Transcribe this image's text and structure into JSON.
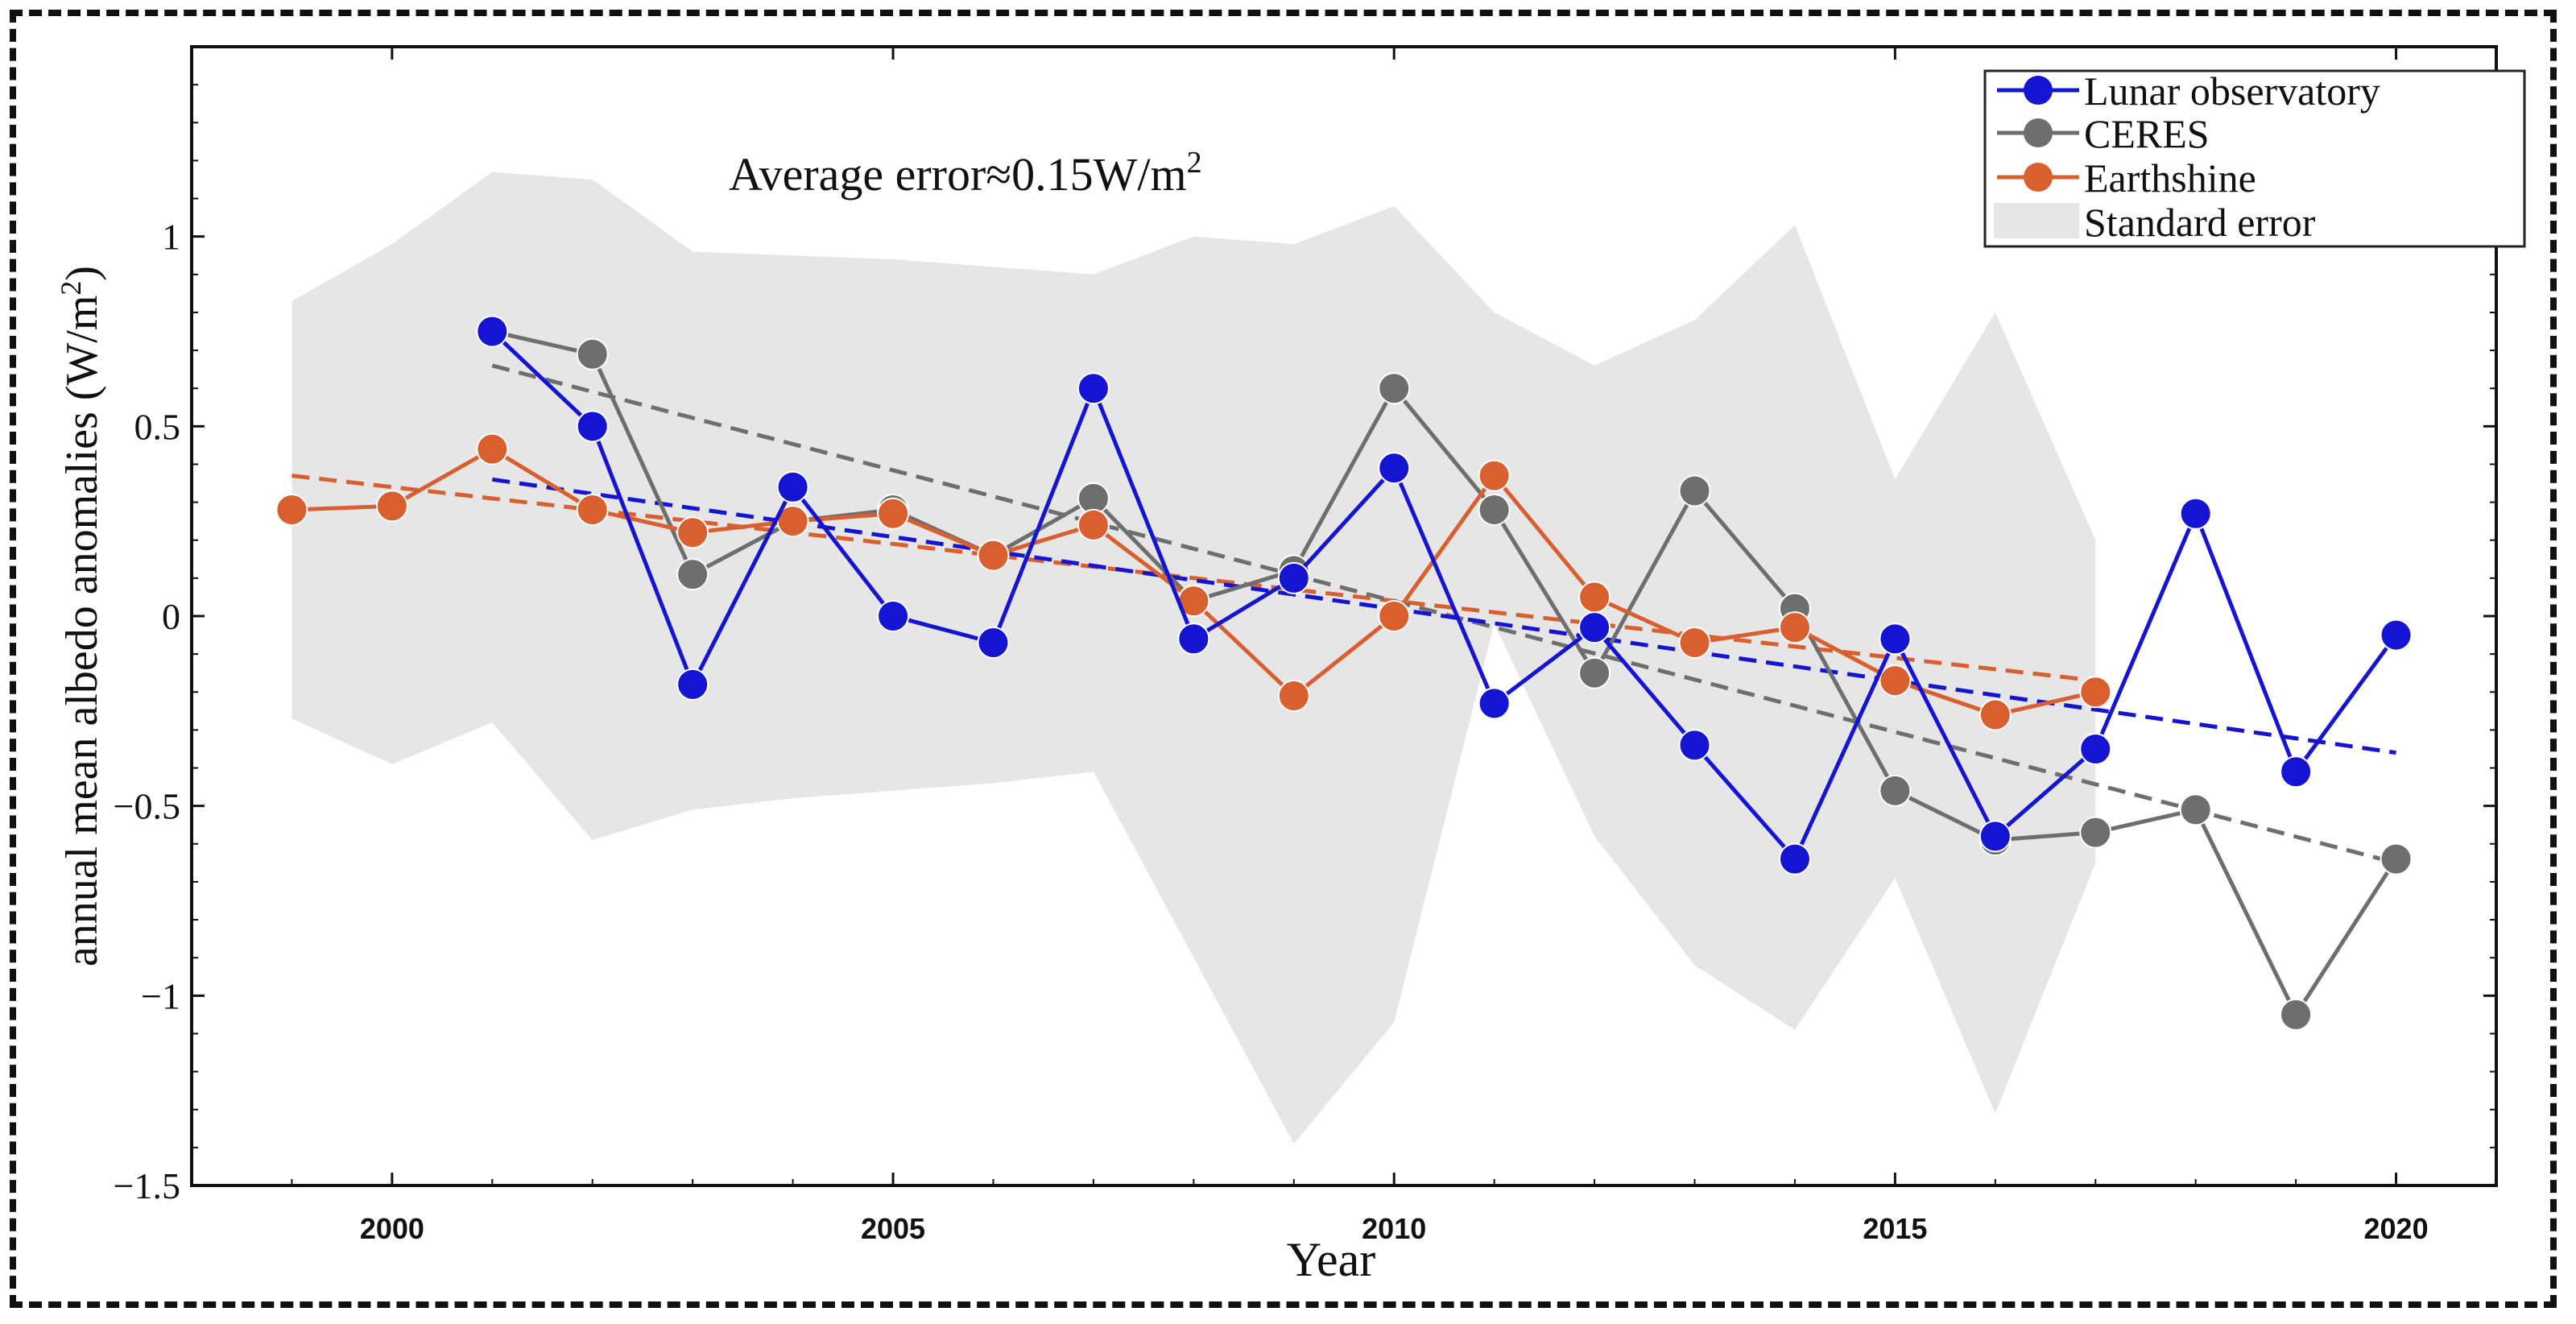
{
  "chart_data": {
    "type": "line",
    "title": "",
    "xlabel": "Year",
    "ylabel_main": "annual mean albedo anomalies (W/m",
    "ylabel_sup": "2",
    "ylabel_end": ")",
    "xlim": [
      1998,
      2021
    ],
    "ylim": [
      -1.5,
      1.5
    ],
    "x_ticks": [
      2000,
      2005,
      2010,
      2015,
      2020
    ],
    "x_tick_labels": [
      "2000",
      "2005",
      "2010",
      "2015",
      "2020"
    ],
    "y_ticks": [
      1,
      0.5,
      0,
      -0.5,
      -1,
      -1.5
    ],
    "y_tick_labels": [
      "1",
      "0.5",
      "0",
      "−0.5",
      "−1",
      "−1.5"
    ],
    "annotation": {
      "text": "Average error≈0.15W/m",
      "sup": "2"
    },
    "legend_position": "top-right",
    "series": [
      {
        "name": "Lunar observatory",
        "color": "#1414d2",
        "x": [
          2001,
          2002,
          2003,
          2004,
          2005,
          2006,
          2007,
          2008,
          2009,
          2010,
          2011,
          2012,
          2013,
          2014,
          2015,
          2016,
          2017,
          2018,
          2019,
          2020
        ],
        "values": [
          0.75,
          0.5,
          -0.18,
          0.34,
          0.0,
          -0.07,
          0.6,
          -0.06,
          0.1,
          0.39,
          -0.23,
          -0.03,
          -0.34,
          -0.64,
          -0.06,
          -0.58,
          -0.35,
          0.27,
          -0.41,
          -0.05
        ],
        "trend": {
          "x": [
            2001,
            2020
          ],
          "y": [
            0.36,
            -0.36
          ]
        }
      },
      {
        "name": "CERES",
        "color": "#6e6e6e",
        "x": [
          2001,
          2002,
          2003,
          2004,
          2005,
          2006,
          2007,
          2008,
          2009,
          2010,
          2011,
          2012,
          2013,
          2014,
          2015,
          2016,
          2017,
          2018,
          2019,
          2020
        ],
        "values": [
          0.75,
          0.69,
          0.11,
          0.25,
          0.28,
          0.16,
          0.31,
          0.04,
          0.12,
          0.6,
          0.28,
          -0.15,
          0.33,
          0.02,
          -0.46,
          -0.59,
          -0.57,
          -0.51,
          -1.05,
          -0.64
        ],
        "trend": {
          "x": [
            2001,
            2020
          ],
          "y": [
            0.66,
            -0.65
          ]
        }
      },
      {
        "name": "Earthshine",
        "color": "#d95f2e",
        "x": [
          1999,
          2000,
          2001,
          2002,
          2003,
          2004,
          2005,
          2006,
          2007,
          2008,
          2009,
          2010,
          2011,
          2012,
          2013,
          2014,
          2015,
          2016,
          2017
        ],
        "values": [
          0.28,
          0.29,
          0.44,
          0.28,
          0.22,
          0.25,
          0.27,
          0.16,
          0.24,
          0.04,
          -0.21,
          0.0,
          0.37,
          0.05,
          -0.07,
          -0.03,
          -0.17,
          -0.26,
          -0.2
        ],
        "trend": {
          "x": [
            1999,
            2017
          ],
          "y": [
            0.37,
            -0.17
          ]
        }
      }
    ],
    "standard_error": {
      "name": "Standard error",
      "color": "#e6e6e6",
      "x": [
        1999,
        2000,
        2001,
        2002,
        2003,
        2004,
        2005,
        2006,
        2007,
        2008,
        2009,
        2010,
        2011,
        2012,
        2013,
        2014,
        2015,
        2016,
        2017
      ],
      "upper": [
        0.83,
        0.98,
        1.17,
        1.15,
        0.96,
        0.95,
        0.94,
        0.92,
        0.9,
        1.0,
        0.98,
        1.08,
        0.8,
        0.66,
        0.78,
        1.03,
        0.36,
        0.8,
        0.2
      ],
      "lower": [
        -0.27,
        -0.39,
        -0.28,
        -0.59,
        -0.51,
        -0.48,
        -0.46,
        -0.44,
        -0.41,
        -0.9,
        -1.39,
        -1.07,
        -0.02,
        -0.58,
        -0.92,
        -1.09,
        -0.69,
        -1.31,
        -0.65
      ]
    }
  }
}
